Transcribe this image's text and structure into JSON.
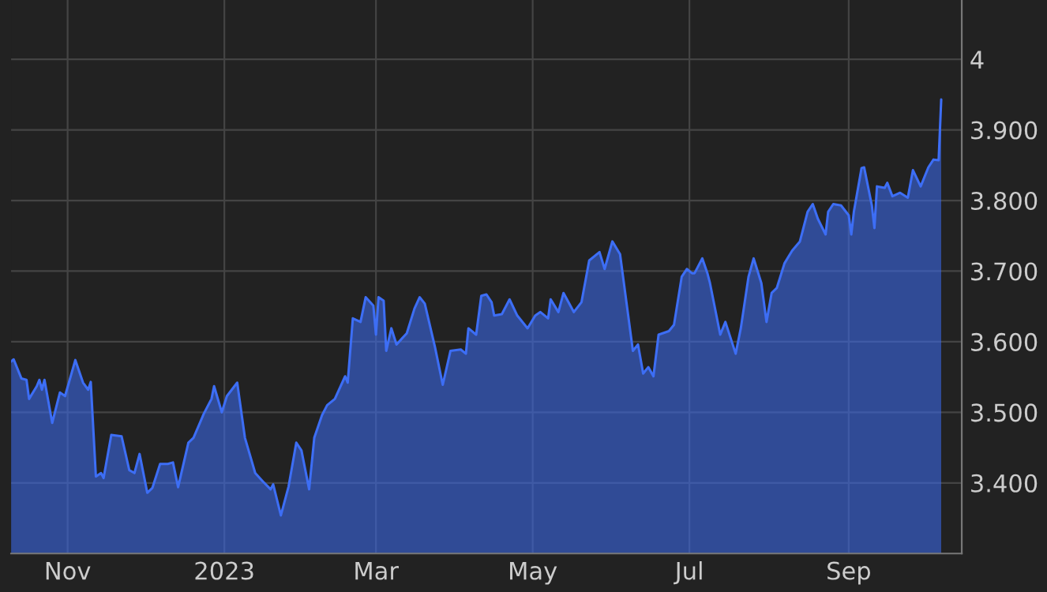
{
  "chart_data": {
    "type": "area",
    "x": [
      "2022-10-10",
      "2022-10-11",
      "2022-10-14",
      "2022-10-16",
      "2022-10-17",
      "2022-10-20",
      "2022-10-21",
      "2022-10-22",
      "2022-10-23",
      "2022-10-26",
      "2022-10-29",
      "2022-10-31",
      "2022-11-04",
      "2022-11-07",
      "2022-11-09",
      "2022-11-10",
      "2022-11-12",
      "2022-11-14",
      "2022-11-15",
      "2022-11-18",
      "2022-11-22",
      "2022-11-25",
      "2022-11-27",
      "2022-11-29",
      "2022-12-02",
      "2022-12-04",
      "2022-12-07",
      "2022-12-10",
      "2022-12-12",
      "2022-12-14",
      "2022-12-18",
      "2022-12-20",
      "2022-12-24",
      "2022-12-27",
      "2022-12-28",
      "2022-12-31",
      "2023-01-02",
      "2023-01-06",
      "2023-01-09",
      "2023-01-13",
      "2023-01-16",
      "2023-01-19",
      "2023-01-20",
      "2023-01-23",
      "2023-01-26",
      "2023-01-29",
      "2023-01-31",
      "2023-02-03",
      "2023-02-05",
      "2023-02-08",
      "2023-02-10",
      "2023-02-13",
      "2023-02-17",
      "2023-02-18",
      "2023-02-20",
      "2023-02-23",
      "2023-02-25",
      "2023-02-28",
      "2023-03-01",
      "2023-03-02",
      "2023-03-04",
      "2023-03-05",
      "2023-03-07",
      "2023-03-09",
      "2023-03-13",
      "2023-03-16",
      "2023-03-18",
      "2023-03-20",
      "2023-03-24",
      "2023-03-27",
      "2023-03-30",
      "2023-04-03",
      "2023-04-05",
      "2023-04-06",
      "2023-04-09",
      "2023-04-11",
      "2023-04-13",
      "2023-04-15",
      "2023-04-16",
      "2023-04-19",
      "2023-04-22",
      "2023-04-25",
      "2023-04-29",
      "2023-05-02",
      "2023-05-04",
      "2023-05-07",
      "2023-05-08",
      "2023-05-11",
      "2023-05-13",
      "2023-05-17",
      "2023-05-20",
      "2023-05-23",
      "2023-05-27",
      "2023-05-29",
      "2023-06-01",
      "2023-06-04",
      "2023-06-07",
      "2023-06-09",
      "2023-06-11",
      "2023-06-13",
      "2023-06-15",
      "2023-06-17",
      "2023-06-19",
      "2023-06-23",
      "2023-06-25",
      "2023-06-28",
      "2023-06-30",
      "2023-07-02",
      "2023-07-03",
      "2023-07-06",
      "2023-07-08",
      "2023-07-09",
      "2023-07-13",
      "2023-07-15",
      "2023-07-19",
      "2023-07-21",
      "2023-07-24",
      "2023-07-26",
      "2023-07-29",
      "2023-07-31",
      "2023-08-02",
      "2023-08-04",
      "2023-08-07",
      "2023-08-10",
      "2023-08-13",
      "2023-08-16",
      "2023-08-18",
      "2023-08-20",
      "2023-08-23",
      "2023-08-24",
      "2023-08-26",
      "2023-08-29",
      "2023-09-01",
      "2023-09-02",
      "2023-09-03",
      "2023-09-06",
      "2023-09-07",
      "2023-09-10",
      "2023-09-11",
      "2023-09-12",
      "2023-09-15",
      "2023-09-16",
      "2023-09-18",
      "2023-09-21",
      "2023-09-24",
      "2023-09-26",
      "2023-09-29",
      "2023-10-02",
      "2023-10-04",
      "2023-10-06",
      "2023-10-07"
    ],
    "series": [
      {
        "color": "#3d6ef5",
        "values": [
          3.572,
          3.575,
          3.548,
          3.546,
          3.519,
          3.537,
          3.546,
          3.532,
          3.546,
          3.485,
          3.528,
          3.523,
          3.574,
          3.542,
          3.532,
          3.543,
          3.409,
          3.414,
          3.407,
          3.468,
          3.466,
          3.418,
          3.414,
          3.441,
          3.386,
          3.393,
          3.427,
          3.427,
          3.429,
          3.394,
          3.457,
          3.464,
          3.498,
          3.519,
          3.537,
          3.5,
          3.523,
          3.542,
          3.464,
          3.414,
          3.402,
          3.391,
          3.398,
          3.354,
          3.395,
          3.457,
          3.446,
          3.391,
          3.464,
          3.496,
          3.51,
          3.519,
          3.551,
          3.542,
          3.633,
          3.628,
          3.663,
          3.651,
          3.61,
          3.663,
          3.658,
          3.587,
          3.619,
          3.596,
          3.612,
          3.647,
          3.663,
          3.654,
          3.592,
          3.539,
          3.587,
          3.589,
          3.583,
          3.619,
          3.61,
          3.665,
          3.667,
          3.656,
          3.637,
          3.639,
          3.66,
          3.637,
          3.619,
          3.637,
          3.642,
          3.633,
          3.66,
          3.642,
          3.669,
          3.642,
          3.656,
          3.715,
          3.727,
          3.703,
          3.742,
          3.724,
          3.642,
          3.587,
          3.596,
          3.555,
          3.564,
          3.551,
          3.61,
          3.615,
          3.624,
          3.692,
          3.703,
          3.697,
          3.697,
          3.718,
          3.697,
          3.683,
          3.61,
          3.628,
          3.583,
          3.619,
          3.692,
          3.718,
          3.683,
          3.628,
          3.669,
          3.676,
          3.711,
          3.729,
          3.742,
          3.784,
          3.795,
          3.774,
          3.752,
          3.784,
          3.795,
          3.793,
          3.779,
          3.752,
          3.784,
          3.846,
          3.847,
          3.793,
          3.761,
          3.82,
          3.818,
          3.825,
          3.806,
          3.811,
          3.804,
          3.843,
          3.82,
          3.847,
          3.858,
          3.857,
          3.943
        ]
      }
    ],
    "xlim": [
      "2022-10-10",
      "2023-10-15"
    ],
    "xticks": [
      {
        "value": "2022-11-01",
        "label": "Nov"
      },
      {
        "value": "2023-01-01",
        "label": "2023"
      },
      {
        "value": "2023-03-01",
        "label": "Mar"
      },
      {
        "value": "2023-05-01",
        "label": "May"
      },
      {
        "value": "2023-07-01",
        "label": "Jul"
      },
      {
        "value": "2023-09-01",
        "label": "Sep"
      }
    ],
    "ylim": [
      3.3,
      4.084
    ],
    "yticks": [
      {
        "value": 3.4,
        "label": "3.400"
      },
      {
        "value": 3.5,
        "label": "3.500"
      },
      {
        "value": 3.6,
        "label": "3.600"
      },
      {
        "value": 3.7,
        "label": "3.700"
      },
      {
        "value": 3.8,
        "label": "3.800"
      },
      {
        "value": 3.9,
        "label": "3.900"
      },
      4
    ],
    "grid": true
  }
}
